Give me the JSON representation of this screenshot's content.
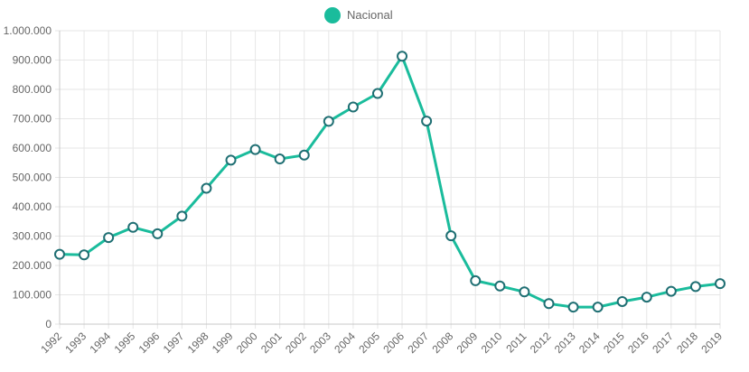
{
  "chart_data": {
    "type": "line",
    "title": "",
    "xlabel": "",
    "ylabel": "",
    "x": [
      1992,
      1993,
      1994,
      1995,
      1996,
      1997,
      1998,
      1999,
      2000,
      2001,
      2002,
      2003,
      2004,
      2005,
      2006,
      2007,
      2008,
      2009,
      2010,
      2011,
      2012,
      2013,
      2014,
      2015,
      2016,
      2017,
      2018,
      2019
    ],
    "x_tick_labels": [
      "1992",
      "1993",
      "1994",
      "1995",
      "1996",
      "1997",
      "1998",
      "1999",
      "2000",
      "2001",
      "2002",
      "2003",
      "2004",
      "2005",
      "2006",
      "2007",
      "2008",
      "2009",
      "2010",
      "2011",
      "2012",
      "2013",
      "2014",
      "2015",
      "2016",
      "2017",
      "2018",
      "2019"
    ],
    "series": [
      {
        "name": "Nacional",
        "color": "#1abc9c",
        "values": [
          238000,
          236000,
          295000,
          330000,
          308000,
          368000,
          463000,
          559000,
          595000,
          563000,
          576000,
          691000,
          740000,
          786000,
          913000,
          692000,
          301000,
          148000,
          130000,
          110000,
          70000,
          58000,
          58000,
          77000,
          92000,
          112000,
          128000,
          138000
        ]
      }
    ],
    "ylim": [
      0,
      1000000
    ],
    "y_ticks": [
      0,
      100000,
      200000,
      300000,
      400000,
      500000,
      600000,
      700000,
      800000,
      900000,
      1000000
    ],
    "y_tick_labels": [
      "0",
      "100.000",
      "200.000",
      "300.000",
      "400.000",
      "500.000",
      "600.000",
      "700.000",
      "800.000",
      "900.000",
      "1.000.000"
    ],
    "grid": true,
    "legend_position": "top-center",
    "colors": {
      "line": "#1abc9c",
      "point_border": "#1f6f73",
      "point_fill": "#ffffff",
      "grid": "#e6e6e6",
      "axis": "#c8c8c8",
      "text": "#666666"
    }
  }
}
